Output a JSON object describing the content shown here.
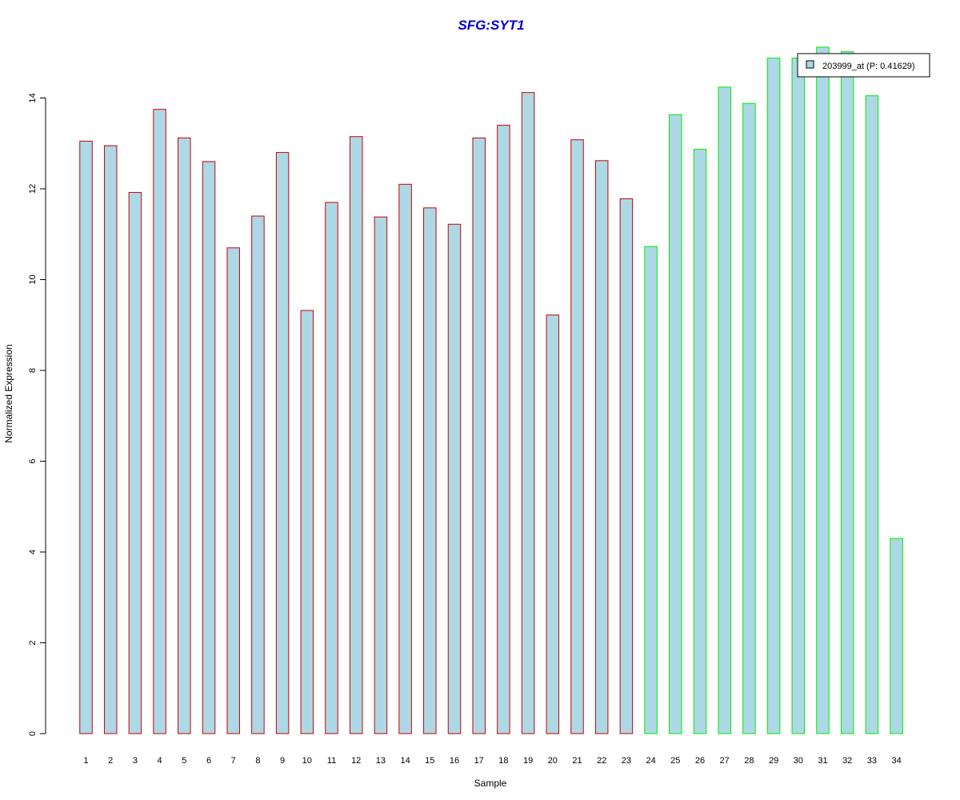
{
  "chart_data": {
    "type": "bar",
    "title": "SFG:SYT1",
    "xlabel": "Sample",
    "ylabel": "Normalized Expression",
    "categories": [
      "1",
      "2",
      "3",
      "4",
      "5",
      "6",
      "7",
      "8",
      "9",
      "10",
      "11",
      "12",
      "13",
      "14",
      "15",
      "16",
      "17",
      "18",
      "19",
      "20",
      "21",
      "22",
      "23",
      "24",
      "25",
      "26",
      "27",
      "28",
      "29",
      "30",
      "31",
      "32",
      "33",
      "34"
    ],
    "series": [
      {
        "name": "203999_at (P: 0.41629)",
        "values": [
          13.05,
          12.95,
          11.92,
          13.75,
          13.12,
          12.6,
          10.7,
          11.4,
          12.8,
          9.32,
          11.7,
          13.15,
          11.38,
          12.1,
          11.58,
          11.22,
          13.12,
          13.4,
          14.12,
          9.22,
          13.08,
          12.62,
          11.78,
          10.73,
          13.63,
          12.87,
          14.24,
          13.88,
          14.88,
          14.88,
          15.12,
          15.02,
          14.05,
          4.3
        ]
      }
    ],
    "groups": [
      {
        "from": 1,
        "to": 23,
        "border_color": "#cc0000"
      },
      {
        "from": 24,
        "to": 34,
        "border_color": "#00ee00"
      }
    ],
    "ylim": [
      0,
      15.2
    ],
    "yticks": [
      0,
      2,
      4,
      6,
      8,
      10,
      12,
      14
    ],
    "grid": false,
    "legend_position": "top-right",
    "colors": {
      "bar_fill": "#add8e6",
      "title": "#0000cc",
      "axis": "#000000"
    }
  }
}
